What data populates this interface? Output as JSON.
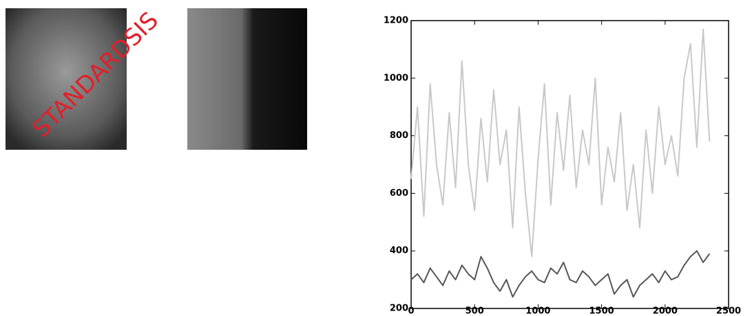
{
  "watermark": "STANDARDSIS",
  "chart_data": {
    "type": "line",
    "x": [
      0,
      50,
      100,
      150,
      200,
      250,
      300,
      350,
      400,
      450,
      500,
      550,
      600,
      650,
      700,
      750,
      800,
      850,
      900,
      950,
      1000,
      1050,
      1100,
      1150,
      1200,
      1250,
      1300,
      1350,
      1400,
      1450,
      1500,
      1550,
      1600,
      1650,
      1700,
      1750,
      1800,
      1850,
      1900,
      1950,
      2000,
      2050,
      2100,
      2150,
      2200,
      2250,
      2300,
      2350
    ],
    "series": [
      {
        "color": "#c8c8c8",
        "values": [
          650,
          900,
          520,
          980,
          700,
          560,
          880,
          620,
          1060,
          700,
          540,
          860,
          640,
          960,
          700,
          820,
          480,
          900,
          600,
          380,
          720,
          980,
          560,
          880,
          680,
          940,
          620,
          820,
          700,
          1000,
          560,
          760,
          640,
          880,
          540,
          700,
          480,
          820,
          600,
          900,
          700,
          800,
          660,
          1000,
          1120,
          760,
          1170,
          780
        ]
      },
      {
        "color": "#555555",
        "values": [
          300,
          320,
          290,
          340,
          310,
          280,
          330,
          300,
          350,
          320,
          300,
          380,
          340,
          290,
          260,
          300,
          240,
          280,
          310,
          330,
          300,
          290,
          340,
          320,
          360,
          300,
          290,
          330,
          310,
          280,
          300,
          320,
          250,
          280,
          300,
          240,
          280,
          300,
          320,
          290,
          330,
          300,
          310,
          350,
          380,
          400,
          360,
          390
        ]
      }
    ],
    "xlim": [
      0,
      2500
    ],
    "xticks": [
      0,
      500,
      1000,
      1500,
      2000,
      2500
    ],
    "ylim": [
      200,
      1200
    ],
    "yticks": [
      200,
      400,
      600,
      800,
      1000,
      1200
    ]
  }
}
